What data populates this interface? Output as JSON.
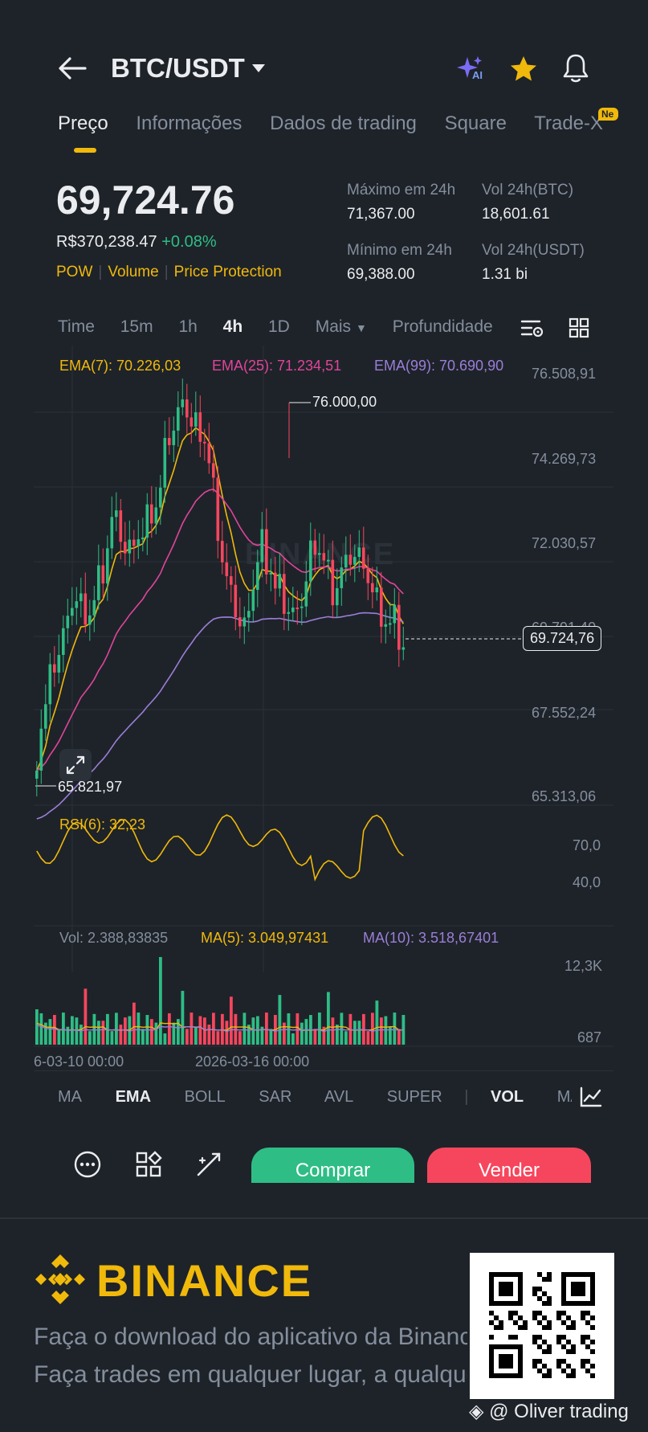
{
  "header": {
    "pair": "BTC/USDT",
    "ai_badge": "AI"
  },
  "tabs": [
    {
      "label": "Preço",
      "active": true
    },
    {
      "label": "Informações",
      "active": false
    },
    {
      "label": "Dados de trading",
      "active": false
    },
    {
      "label": "Square",
      "active": false
    },
    {
      "label": "Trade-X",
      "active": false
    }
  ],
  "tabs_new_badge": "Ne",
  "price": {
    "last": "69,724.76",
    "fiat": "R$370,238.47",
    "change": "+0.08%",
    "badges": [
      "POW",
      "Volume",
      "Price Protection"
    ]
  },
  "stats": {
    "high_label": "Máximo em 24h",
    "high": "71,367.00",
    "low_label": "Mínimo em 24h",
    "low": "69,388.00",
    "vol_btc_label": "Vol 24h(BTC)",
    "vol_btc": "18,601.61",
    "vol_usdt_label": "Vol 24h(USDT)",
    "vol_usdt": "1.31 bi"
  },
  "intervals": {
    "items": [
      "Time",
      "15m",
      "1h",
      "4h",
      "1D"
    ],
    "active": "4h",
    "more": "Mais",
    "depth": "Profundidade"
  },
  "ema_legend": {
    "ema7": "EMA(7): 70.226,03",
    "ema25": "EMA(25): 71.234,51",
    "ema99": "EMA(99): 70.690,90"
  },
  "price_axis": [
    "76.508,91",
    "74.269,73",
    "72.030,57",
    "69.791,40",
    "67.552,24",
    "65.313,06"
  ],
  "price_tag": "69.724,76",
  "high_marker": "76.000,00",
  "low_marker": "65.821,97",
  "watermark": "BINANCE",
  "rsi": {
    "legend": "RSI(6): 32,23",
    "axis": [
      "70,0",
      "40,0"
    ]
  },
  "volume": {
    "vol": "Vol: 2.388,83835",
    "ma5": "MA(5): 3.049,97431",
    "ma10": "MA(10): 3.518,67401",
    "axis": [
      "12,3K",
      "687"
    ]
  },
  "time_axis": [
    "6-03-10 00:00",
    "2026-03-16 00:00"
  ],
  "indicators": {
    "items": [
      "MA",
      "EMA",
      "BOLL",
      "SAR",
      "AVL",
      "SUPER",
      "VOL",
      "MACD"
    ],
    "active": [
      "EMA",
      "VOL"
    ]
  },
  "actions": {
    "buy": "Comprar",
    "sell": "Vender"
  },
  "footer": {
    "brand": "BINANCE",
    "line1": "Faça o download do aplicativo da Binance",
    "line2": "Faça trades em qualquer lugar, a qualquer momento",
    "credit": "@ Oliver trading"
  },
  "colors": {
    "up": "#2ebd85",
    "down": "#f6465d",
    "accent": "#f0b90b",
    "ema7": "#f0b90b",
    "ema25": "#e0459b",
    "ema99": "#9b7ed8"
  },
  "icons": [
    "back-arrow-icon",
    "dropdown-caret-icon",
    "ai-sparkle-icon",
    "star-icon",
    "bell-icon",
    "chart-settings-icon",
    "grid-icon",
    "expand-icon",
    "indicator-chart-icon",
    "more-dots-icon",
    "shapes-icon",
    "drawing-tool-icon",
    "binance-logo-icon",
    "qr-code"
  ]
}
